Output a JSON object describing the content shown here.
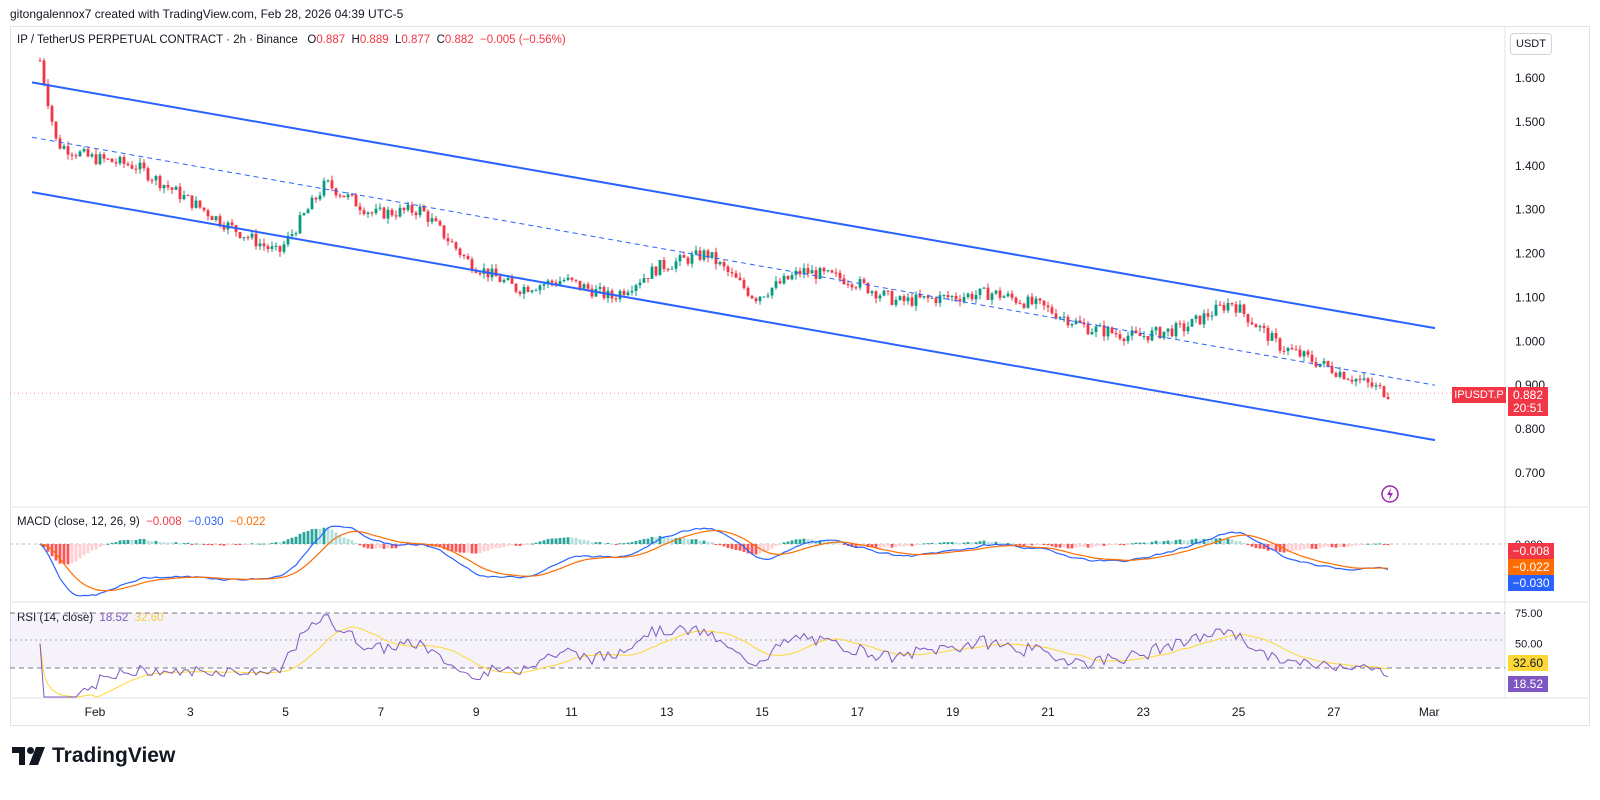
{
  "header": {
    "caption": "gitongalennox7 created with TradingView.com, Feb 28, 2026 04:39 UTC-5"
  },
  "legend": {
    "symbol": "IP / TetherUS PERPETUAL CONTRACT · 2h · Binance",
    "o_label": "O",
    "o": "0.887",
    "h_label": "H",
    "h": "0.889",
    "l_label": "L",
    "l": "0.877",
    "c_label": "C",
    "c": "0.882",
    "change": "−0.005 (−0.56%)"
  },
  "currency_button": "USDT",
  "price_tag": {
    "symbol": "IPUSDT.P",
    "price": "0.882",
    "countdown": "20:51"
  },
  "macd_legend": {
    "label": "MACD (close, 12, 26, 9)",
    "hist": "−0.008",
    "macd": "−0.030",
    "signal": "−0.022"
  },
  "macd_tags": {
    "hist": "−0.008",
    "signal": "−0.022",
    "macd": "−0.030",
    "zero": "0.000"
  },
  "rsi_legend": {
    "label": "RSI (14, close)",
    "rsi": "18.52",
    "ma": "32.60"
  },
  "rsi_tags": {
    "ma": "32.60",
    "rsi": "18.52"
  },
  "brand": {
    "name": "TradingView"
  },
  "colors": {
    "up": "#089981",
    "down": "#f23645",
    "channel": "#2962ff",
    "macd": "#2962ff",
    "signal": "#ff6d00",
    "rsi": "#7e57c2",
    "rsi_ma": "#fdd835"
  },
  "chart_data": {
    "type": "candlestick",
    "timeframe": "2h",
    "y_axis_ticks": [
      "1.600",
      "1.500",
      "1.400",
      "1.300",
      "1.200",
      "1.100",
      "1.000",
      "0.900",
      "0.800",
      "0.700"
    ],
    "x_axis_ticks": [
      "Feb",
      "3",
      "5",
      "7",
      "9",
      "11",
      "13",
      "15",
      "17",
      "19",
      "21",
      "23",
      "25",
      "27",
      "Mar"
    ],
    "ylim": [
      0.65,
      1.72
    ],
    "approx_close_path": [
      {
        "date": "Feb 1",
        "close": 1.64
      },
      {
        "date": "Feb 1",
        "close": 1.45
      },
      {
        "date": "Feb 2",
        "close": 1.42
      },
      {
        "date": "Feb 3",
        "close": 1.4
      },
      {
        "date": "Feb 4",
        "close": 1.33
      },
      {
        "date": "Feb 5",
        "close": 1.26
      },
      {
        "date": "Feb 6",
        "close": 1.2
      },
      {
        "date": "Feb 7",
        "close": 1.36
      },
      {
        "date": "Feb 8",
        "close": 1.29
      },
      {
        "date": "Feb 9",
        "close": 1.3
      },
      {
        "date": "Feb 10",
        "close": 1.18
      },
      {
        "date": "Feb 11",
        "close": 1.12
      },
      {
        "date": "Feb 12",
        "close": 1.14
      },
      {
        "date": "Feb 13",
        "close": 1.1
      },
      {
        "date": "Feb 14",
        "close": 1.17
      },
      {
        "date": "Feb 15",
        "close": 1.2
      },
      {
        "date": "Feb 16",
        "close": 1.1
      },
      {
        "date": "Feb 17",
        "close": 1.16
      },
      {
        "date": "Feb 18",
        "close": 1.14
      },
      {
        "date": "Feb 19",
        "close": 1.09
      },
      {
        "date": "Feb 20",
        "close": 1.1
      },
      {
        "date": "Feb 21",
        "close": 1.11
      },
      {
        "date": "Feb 22",
        "close": 1.08
      },
      {
        "date": "Feb 23",
        "close": 1.03
      },
      {
        "date": "Feb 24",
        "close": 1.01
      },
      {
        "date": "Feb 25",
        "close": 1.03
      },
      {
        "date": "Feb 26",
        "close": 1.09
      },
      {
        "date": "Feb 27",
        "close": 0.99
      },
      {
        "date": "Feb 28",
        "close": 0.882
      }
    ],
    "channel": {
      "upper": [
        {
          "date": "Feb 1",
          "price": 1.59
        },
        {
          "date": "Feb 28",
          "price": 1.03
        }
      ],
      "middle": [
        {
          "date": "Feb 1",
          "price": 1.465
        },
        {
          "date": "Feb 28",
          "price": 0.9
        }
      ],
      "lower": [
        {
          "date": "Feb 1",
          "price": 1.34
        },
        {
          "date": "Feb 28",
          "price": 0.775
        }
      ]
    },
    "last_price": 0.882,
    "macd": {
      "hist": -0.008,
      "macd": -0.03,
      "signal": -0.022
    },
    "rsi": {
      "value": 18.52,
      "ma": 32.6,
      "levels": [
        "75.00",
        "50.00"
      ]
    }
  }
}
